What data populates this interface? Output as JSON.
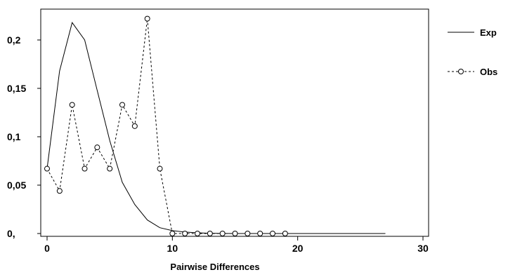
{
  "chart_data": {
    "type": "line",
    "title": "",
    "xlabel": "Pairwise Differences",
    "ylabel": "",
    "xlim": [
      -0.5,
      30
    ],
    "ylim": [
      0,
      0.235
    ],
    "x_ticks": [
      0,
      10,
      20,
      30
    ],
    "y_ticks": [
      0,
      0.05,
      0.1,
      0.15,
      0.2
    ],
    "x_tick_labels": [
      "0",
      "10",
      "20",
      "30"
    ],
    "y_tick_labels": [
      "0,",
      "0,05",
      "0,1",
      "0,15",
      "0,2"
    ],
    "grid": false,
    "legend_position": "right",
    "series": [
      {
        "name": "Exp",
        "style": "solid",
        "color": "#000000",
        "x": [
          0,
          1,
          2,
          3,
          4,
          5,
          6,
          7,
          8,
          9,
          10,
          11,
          12,
          13,
          14,
          15,
          16,
          17,
          18,
          19,
          20,
          21,
          22,
          23,
          24,
          25,
          26,
          27
        ],
        "values": [
          0.067,
          0.168,
          0.218,
          0.2,
          0.148,
          0.096,
          0.053,
          0.03,
          0.014,
          0.006,
          0.003,
          0.0015,
          0.0007,
          0.0003,
          0.0001,
          0,
          0,
          0,
          0,
          0,
          0,
          0,
          0,
          0,
          0,
          0,
          0,
          0
        ]
      },
      {
        "name": "Obs",
        "style": "dashed",
        "marker": "circle",
        "color": "#000000",
        "x": [
          0,
          1,
          2,
          3,
          4,
          5,
          6,
          7,
          8,
          9,
          10,
          11,
          12,
          13,
          14,
          15,
          16,
          17,
          18,
          19
        ],
        "values": [
          0.067,
          0.044,
          0.133,
          0.067,
          0.089,
          0.067,
          0.133,
          0.111,
          0.222,
          0.067,
          0,
          0,
          0,
          0,
          0,
          0,
          0,
          0,
          0,
          0
        ]
      }
    ]
  }
}
